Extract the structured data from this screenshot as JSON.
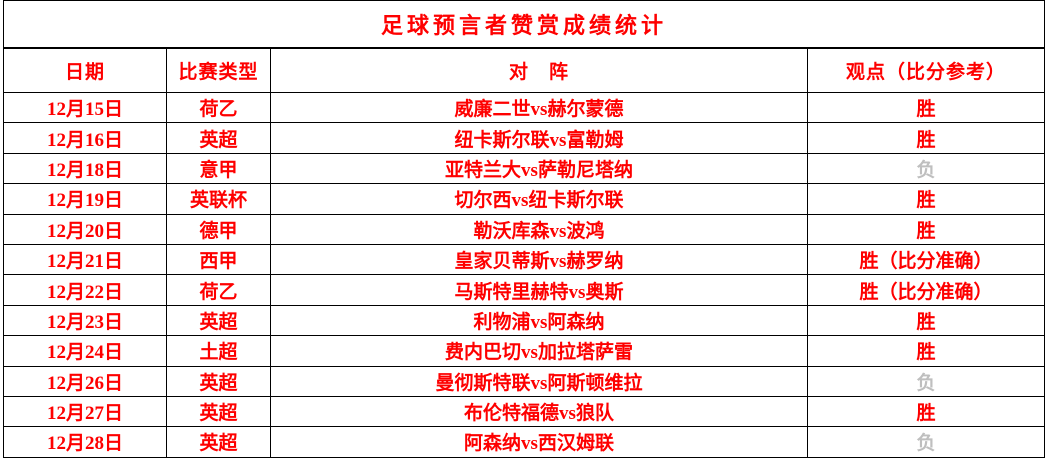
{
  "title": "足球预言者赞赏成绩统计",
  "table": {
    "headers": [
      "日期",
      "比赛类型",
      "对　阵",
      "观点（比分参考）"
    ],
    "rows": [
      {
        "date": "12月15日",
        "league": "荷乙",
        "matchup": "威廉二世vs赫尔蒙德",
        "result": "胜",
        "result_status": "win"
      },
      {
        "date": "12月16日",
        "league": "英超",
        "matchup": "纽卡斯尔联vs富勒姆",
        "result": "胜",
        "result_status": "win"
      },
      {
        "date": "12月18日",
        "league": "意甲",
        "matchup": "亚特兰大vs萨勒尼塔纳",
        "result": "负",
        "result_status": "loss"
      },
      {
        "date": "12月19日",
        "league": "英联杯",
        "matchup": "切尔西vs纽卡斯尔联",
        "result": "胜",
        "result_status": "win"
      },
      {
        "date": "12月20日",
        "league": "德甲",
        "matchup": "勒沃库森vs波鸿",
        "result": "胜",
        "result_status": "win"
      },
      {
        "date": "12月21日",
        "league": "西甲",
        "matchup": "皇家贝蒂斯vs赫罗纳",
        "result": "胜（比分准确）",
        "result_status": "win"
      },
      {
        "date": "12月22日",
        "league": "荷乙",
        "matchup": "马斯特里赫特vs奥斯",
        "result": "胜（比分准确）",
        "result_status": "win"
      },
      {
        "date": "12月23日",
        "league": "英超",
        "matchup": "利物浦vs阿森纳",
        "result": "胜",
        "result_status": "win"
      },
      {
        "date": "12月24日",
        "league": "土超",
        "matchup": "费内巴切vs加拉塔萨雷",
        "result": "胜",
        "result_status": "win"
      },
      {
        "date": "12月26日",
        "league": "英超",
        "matchup": "曼彻斯特联vs阿斯顿维拉",
        "result": "负",
        "result_status": "loss"
      },
      {
        "date": "12月27日",
        "league": "英超",
        "matchup": "布伦特福德vs狼队",
        "result": "胜",
        "result_status": "win"
      },
      {
        "date": "12月28日",
        "league": "英超",
        "matchup": "阿森纳vs西汉姆联",
        "result": "负",
        "result_status": "loss"
      }
    ]
  },
  "colors": {
    "text_red": "#fe0000",
    "loss_gray": "#bfbfbf",
    "border_black": "#000000",
    "background": "#ffffff"
  }
}
